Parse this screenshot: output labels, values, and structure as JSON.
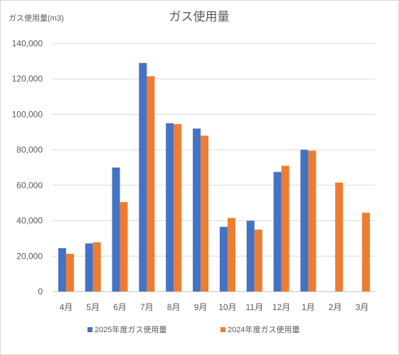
{
  "chart_data": {
    "type": "bar",
    "title": "ガス使用量",
    "ylabel": "ガス使用量(m3)",
    "xlabel": "",
    "ylim": [
      0,
      140000
    ],
    "yticks": [
      0,
      20000,
      40000,
      60000,
      80000,
      100000,
      120000,
      140000
    ],
    "ytick_labels": [
      "0",
      "20,000",
      "40,000",
      "60,000",
      "80,000",
      "100,000",
      "120,000",
      "140,000"
    ],
    "categories": [
      "4月",
      "5月",
      "6月",
      "7月",
      "8月",
      "9月",
      "10月",
      "11月",
      "12月",
      "1月",
      "2月",
      "3月"
    ],
    "grid": true,
    "legend_position": "bottom",
    "series": [
      {
        "name": "2025年度ガス使用量",
        "color": "#4472c4",
        "values": [
          24500,
          27200,
          70000,
          129000,
          95000,
          92000,
          36500,
          40000,
          67500,
          80000,
          null,
          null
        ]
      },
      {
        "name": "2024年度ガス使用量",
        "color": "#ed7d31",
        "values": [
          21300,
          27800,
          50500,
          121500,
          94500,
          88000,
          41500,
          35000,
          71000,
          79500,
          61500,
          44500
        ]
      }
    ]
  }
}
